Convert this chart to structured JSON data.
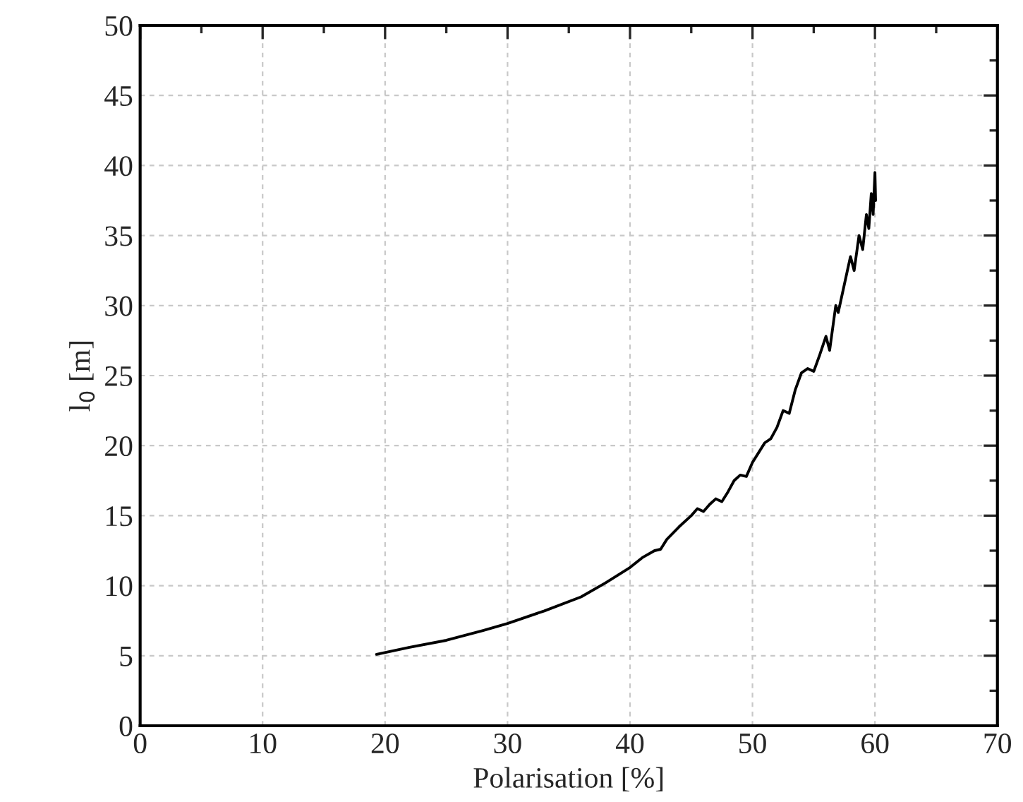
{
  "chart_data": {
    "type": "line",
    "xlabel": "Polarisation [%]",
    "ylabel": "l$_{0}$ [m]",
    "xlim": [
      0,
      70
    ],
    "xticks": [
      0,
      10,
      20,
      30,
      40,
      50,
      60,
      70
    ],
    "ylim": [
      0,
      50
    ],
    "yticks": [
      0,
      5,
      10,
      15,
      20,
      25,
      30,
      35,
      40,
      45,
      50
    ],
    "grid": true,
    "series": [
      {
        "color": "#000000",
        "x": [
          19.3,
          22,
          25,
          28,
          30,
          33,
          36,
          38,
          40,
          41,
          42,
          42.5,
          43,
          44,
          45,
          45.5,
          46,
          46.5,
          47,
          47.5,
          48,
          48.5,
          49,
          49.5,
          50,
          50.5,
          51,
          51.5,
          52,
          52.5,
          53,
          53.5,
          54,
          54.5,
          55,
          55.5,
          56,
          56.3,
          56.8,
          57,
          57.5,
          58,
          58.3,
          58.7,
          59,
          59.3,
          59.5,
          59.7,
          59.85,
          60,
          60.05
        ],
        "values": [
          5.1,
          5.6,
          6.1,
          6.8,
          7.3,
          8.2,
          9.2,
          10.2,
          11.3,
          12.0,
          12.5,
          12.6,
          13.3,
          14.2,
          15.0,
          15.5,
          15.3,
          15.8,
          16.2,
          16.0,
          16.7,
          17.5,
          17.9,
          17.8,
          18.8,
          19.5,
          20.2,
          20.5,
          21.3,
          22.5,
          22.3,
          24.0,
          25.2,
          25.5,
          25.3,
          26.5,
          27.8,
          26.8,
          30.0,
          29.5,
          31.5,
          33.5,
          32.5,
          35.0,
          34.0,
          36.5,
          35.5,
          38.0,
          36.5,
          39.5,
          37.5
        ]
      }
    ]
  }
}
